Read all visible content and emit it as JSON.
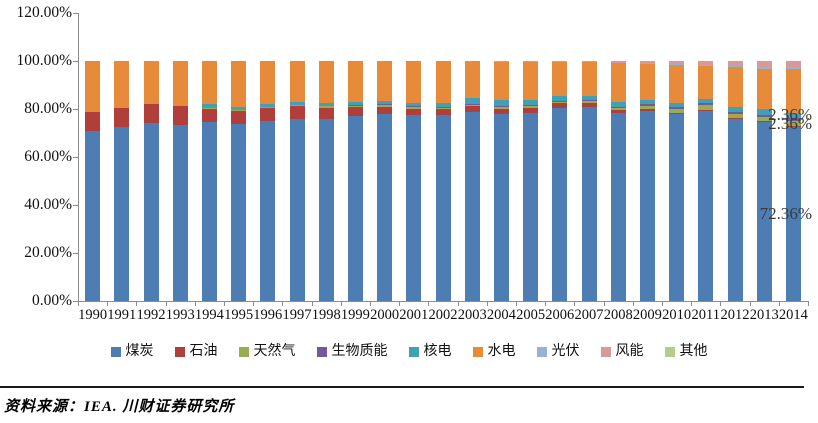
{
  "chart_data": {
    "type": "bar",
    "stacked": true,
    "percent_stacked": true,
    "title": "",
    "xlabel": "",
    "ylabel": "",
    "gridlines": false,
    "legend_position": "bottom",
    "y_axis": {
      "min": 0,
      "max": 120,
      "step": 20,
      "tick_labels": [
        "0.00%",
        "20.00%",
        "40.00%",
        "60.00%",
        "80.00%",
        "100.00%",
        "120.00%"
      ]
    },
    "categories": [
      "1990",
      "1991",
      "1992",
      "1993",
      "1994",
      "1995",
      "1996",
      "1997",
      "1998",
      "1999",
      "2000",
      "2001",
      "2002",
      "2003",
      "2004",
      "2005",
      "2006",
      "2007",
      "2008",
      "2009",
      "2010",
      "2011",
      "2012",
      "2013",
      "2014"
    ],
    "series": [
      {
        "name": "煤炭",
        "color": "#4E7DB4",
        "values": [
          71.0,
          72.5,
          74.2,
          73.5,
          74.5,
          73.7,
          75.2,
          76.0,
          75.8,
          77.0,
          78.0,
          77.4,
          77.3,
          78.7,
          77.9,
          78.5,
          80.5,
          81.0,
          78.5,
          79.2,
          77.8,
          79.0,
          75.9,
          74.7,
          72.36
        ]
      },
      {
        "name": "石油",
        "color": "#B03E3A",
        "values": [
          7.9,
          8.0,
          7.8,
          7.8,
          5.6,
          5.4,
          5.3,
          5.1,
          4.7,
          3.8,
          3.0,
          2.8,
          2.6,
          2.4,
          2.3,
          2.0,
          1.8,
          1.4,
          1.0,
          0.8,
          0.7,
          0.6,
          0.5,
          0.4,
          0.4
        ]
      },
      {
        "name": "天然气",
        "color": "#97AD51",
        "values": [
          0.4,
          0.5,
          0.5,
          0.5,
          0.5,
          0.4,
          0.4,
          0.5,
          0.6,
          0.7,
          0.9,
          1.0,
          1.0,
          1.0,
          1.1,
          1.1,
          0.9,
          1.0,
          1.1,
          1.4,
          1.6,
          2.0,
          1.7,
          1.7,
          2.36
        ]
      },
      {
        "name": "生物质能",
        "color": "#71599C",
        "values": [
          0,
          0,
          0,
          0,
          0,
          0,
          0,
          0,
          0,
          0.1,
          0.1,
          0.1,
          0.1,
          0.1,
          0.1,
          0.2,
          0.2,
          0.3,
          0.4,
          0.5,
          0.6,
          0.7,
          0.8,
          0.9,
          1.0
        ]
      },
      {
        "name": "核电",
        "color": "#41A0B6",
        "values": [
          0,
          0,
          0,
          0,
          1.4,
          1.3,
          1.3,
          1.3,
          1.2,
          1.2,
          1.2,
          1.2,
          1.5,
          2.2,
          2.3,
          2.1,
          1.9,
          1.9,
          2.0,
          1.9,
          1.8,
          1.8,
          2.0,
          2.1,
          2.36
        ]
      },
      {
        "name": "水电",
        "color": "#E78B3B",
        "values": [
          20.7,
          19.0,
          17.5,
          18.2,
          18.0,
          19.2,
          17.8,
          17.1,
          17.7,
          17.2,
          16.8,
          17.5,
          17.5,
          15.6,
          16.2,
          16.0,
          14.5,
          14.0,
          16.3,
          15.2,
          16.2,
          14.3,
          17.0,
          16.8,
          18.2
        ]
      },
      {
        "name": "光伏",
        "color": "#95B3D7",
        "values": [
          0,
          0,
          0,
          0,
          0,
          0,
          0,
          0,
          0,
          0,
          0,
          0,
          0,
          0,
          0,
          0,
          0,
          0,
          0,
          0.1,
          0.1,
          0.1,
          0.2,
          0.8,
          0.7
        ]
      },
      {
        "name": "风能",
        "color": "#D9989A",
        "values": [
          0,
          0,
          0,
          0,
          0,
          0,
          0,
          0,
          0,
          0,
          0,
          0,
          0,
          0,
          0.1,
          0.1,
          0.2,
          0.4,
          0.7,
          0.9,
          1.2,
          1.5,
          1.9,
          2.6,
          2.62
        ]
      },
      {
        "name": "其他",
        "color": "#B6CC8A",
        "values": [
          0,
          0,
          0,
          0,
          0,
          0,
          0,
          0,
          0,
          0,
          0,
          0,
          0,
          0,
          0,
          0,
          0,
          0,
          0,
          0,
          0,
          0,
          0,
          0,
          0
        ]
      }
    ],
    "data_labels": [
      {
        "text": "2.36%",
        "series": "核电",
        "category": "2014"
      },
      {
        "text": "2.36%",
        "series": "天然气",
        "category": "2014"
      },
      {
        "text": "72.36%",
        "series": "煤炭",
        "category": "2014"
      }
    ]
  },
  "source_note": "资料来源：IEA. 川财证券研究所"
}
